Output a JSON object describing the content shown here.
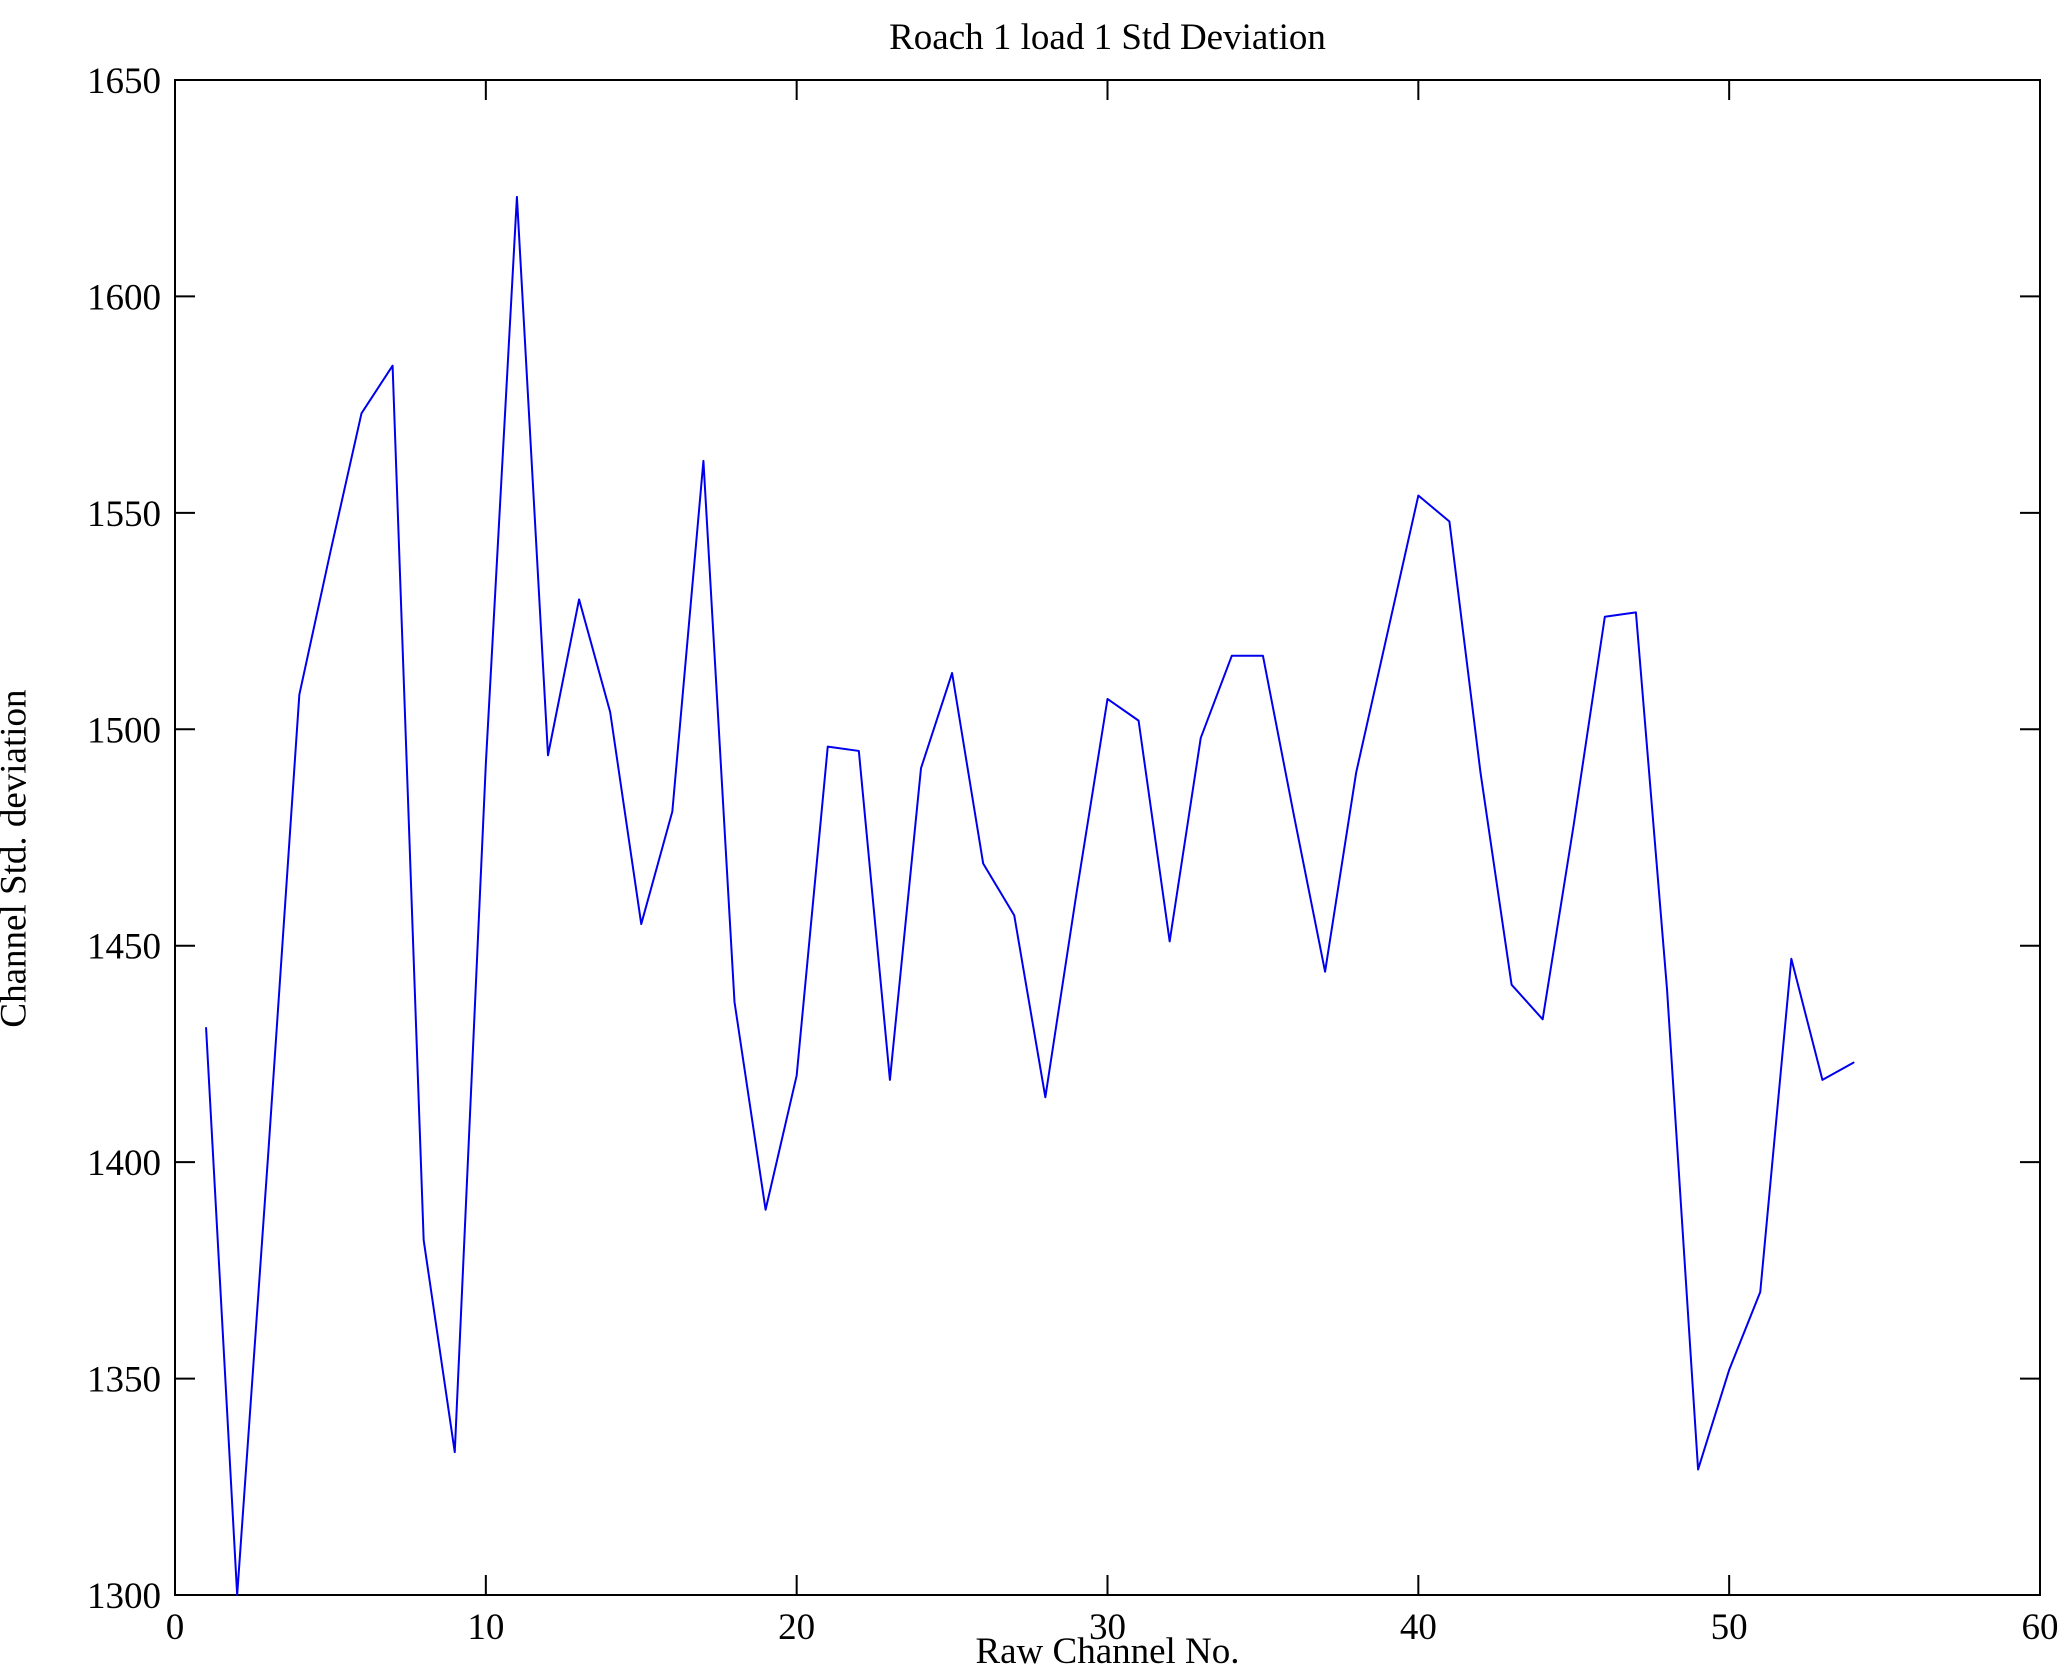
{
  "chart_data": {
    "type": "line",
    "title": "Roach 1 load 1 Std Deviation",
    "xlabel": "Raw Channel No.",
    "ylabel": "Channel Std. deviation",
    "xlim": [
      0,
      60
    ],
    "ylim": [
      1300,
      1650
    ],
    "xticks": [
      0,
      10,
      20,
      30,
      40,
      50,
      60
    ],
    "yticks": [
      1300,
      1350,
      1400,
      1450,
      1500,
      1550,
      1600,
      1650
    ],
    "grid": false,
    "legend": null,
    "line_color": "#0000ee",
    "axis_color": "#000000",
    "x": [
      1,
      2,
      3,
      4,
      5,
      6,
      7,
      8,
      9,
      10,
      11,
      12,
      13,
      14,
      15,
      16,
      17,
      18,
      19,
      20,
      21,
      22,
      23,
      24,
      25,
      26,
      27,
      28,
      29,
      30,
      31,
      32,
      33,
      34,
      35,
      36,
      37,
      38,
      39,
      40,
      41,
      42,
      43,
      44,
      45,
      46,
      47,
      48,
      49,
      50,
      51,
      52,
      53,
      54
    ],
    "values": [
      1431,
      1300,
      1402,
      1508,
      1541,
      1573,
      1584,
      1382,
      1333,
      1492,
      1623,
      1494,
      1530,
      1504,
      1455,
      1481,
      1562,
      1437,
      1389,
      1420,
      1496,
      1495,
      1419,
      1491,
      1513,
      1469,
      1457,
      1415,
      1462,
      1507,
      1502,
      1451,
      1498,
      1517,
      1517,
      1480,
      1444,
      1490,
      1522,
      1554,
      1548,
      1490,
      1441,
      1433,
      1478,
      1526,
      1527,
      1440,
      1329,
      1352,
      1370,
      1447,
      1419,
      1423
    ]
  }
}
